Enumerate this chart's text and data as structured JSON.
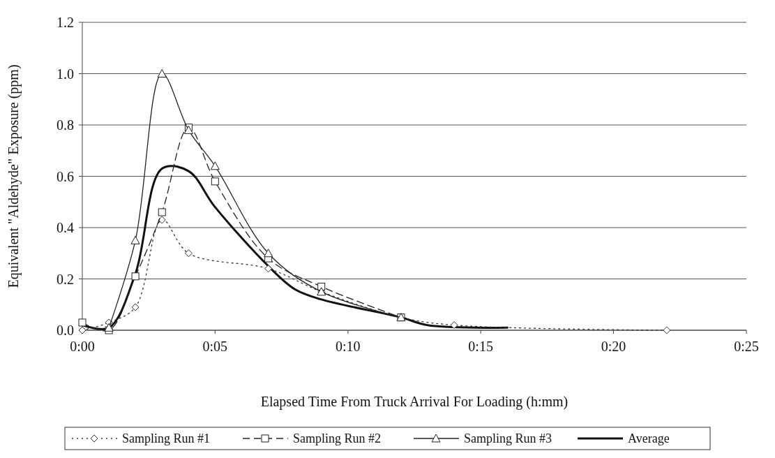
{
  "chart_data": {
    "type": "line",
    "xlabel": "Elapsed Time From Truck Arrival For Loading (h:mm)",
    "ylabel": "Equivalent \"Aldehyde\" Exposure (ppm)",
    "xlim": [
      0,
      0.4167
    ],
    "xticks": [
      {
        "value": 0,
        "label": "0:00"
      },
      {
        "value": 0.0833,
        "label": "0:05"
      },
      {
        "value": 0.1667,
        "label": "0:10"
      },
      {
        "value": 0.25,
        "label": "0:15"
      },
      {
        "value": 0.3333,
        "label": "0:20"
      },
      {
        "value": 0.4167,
        "label": "0:25"
      }
    ],
    "ylim": [
      0,
      1.2
    ],
    "yticks": [
      {
        "value": 0,
        "label": "0.0"
      },
      {
        "value": 0.2,
        "label": "0.2"
      },
      {
        "value": 0.4,
        "label": "0.4"
      },
      {
        "value": 0.6,
        "label": "0.6"
      },
      {
        "value": 0.8,
        "label": "0.8"
      },
      {
        "value": 1,
        "label": "1.0"
      },
      {
        "value": 1.2,
        "label": "1.2"
      }
    ],
    "grid": "y",
    "legend": "bottom",
    "series": [
      {
        "name": "Sampling Run #1",
        "color": "#333333",
        "marker": "diamond",
        "line_style": "dotted",
        "x": [
          0,
          0.0167,
          0.0333,
          0.05,
          0.0667,
          0.1167,
          0.15,
          0.2,
          0.2333,
          0.3667
        ],
        "values": [
          0.0,
          0.03,
          0.09,
          0.43,
          0.3,
          0.24,
          0.15,
          0.05,
          0.02,
          0.0
        ]
      },
      {
        "name": "Sampling Run #2",
        "color": "#222222",
        "marker": "square",
        "line_style": "dashed",
        "x": [
          0,
          0.0167,
          0.0333,
          0.05,
          0.0667,
          0.0833,
          0.1167,
          0.15,
          0.2
        ],
        "values": [
          0.03,
          0.0,
          0.21,
          0.46,
          0.79,
          0.58,
          0.28,
          0.17,
          0.05
        ]
      },
      {
        "name": "Sampling Run #3",
        "color": "#222222",
        "marker": "triangle",
        "line_style": "solid",
        "x": [
          0.0167,
          0.0333,
          0.05,
          0.0667,
          0.0833,
          0.1167,
          0.15,
          0.2
        ],
        "values": [
          0.01,
          0.35,
          1.0,
          0.78,
          0.64,
          0.3,
          0.15,
          0.05
        ]
      },
      {
        "name": "Average",
        "color": "#111111",
        "marker": "none",
        "line_style": "solid",
        "x": [
          0,
          0.0167,
          0.0333,
          0.05,
          0.0667,
          0.0833,
          0.1167,
          0.1333,
          0.15,
          0.2,
          0.2167,
          0.2667
        ],
        "values": [
          0.02,
          0.01,
          0.22,
          0.63,
          0.62,
          0.48,
          0.25,
          0.16,
          0.12,
          0.05,
          0.02,
          0.01
        ]
      }
    ]
  }
}
